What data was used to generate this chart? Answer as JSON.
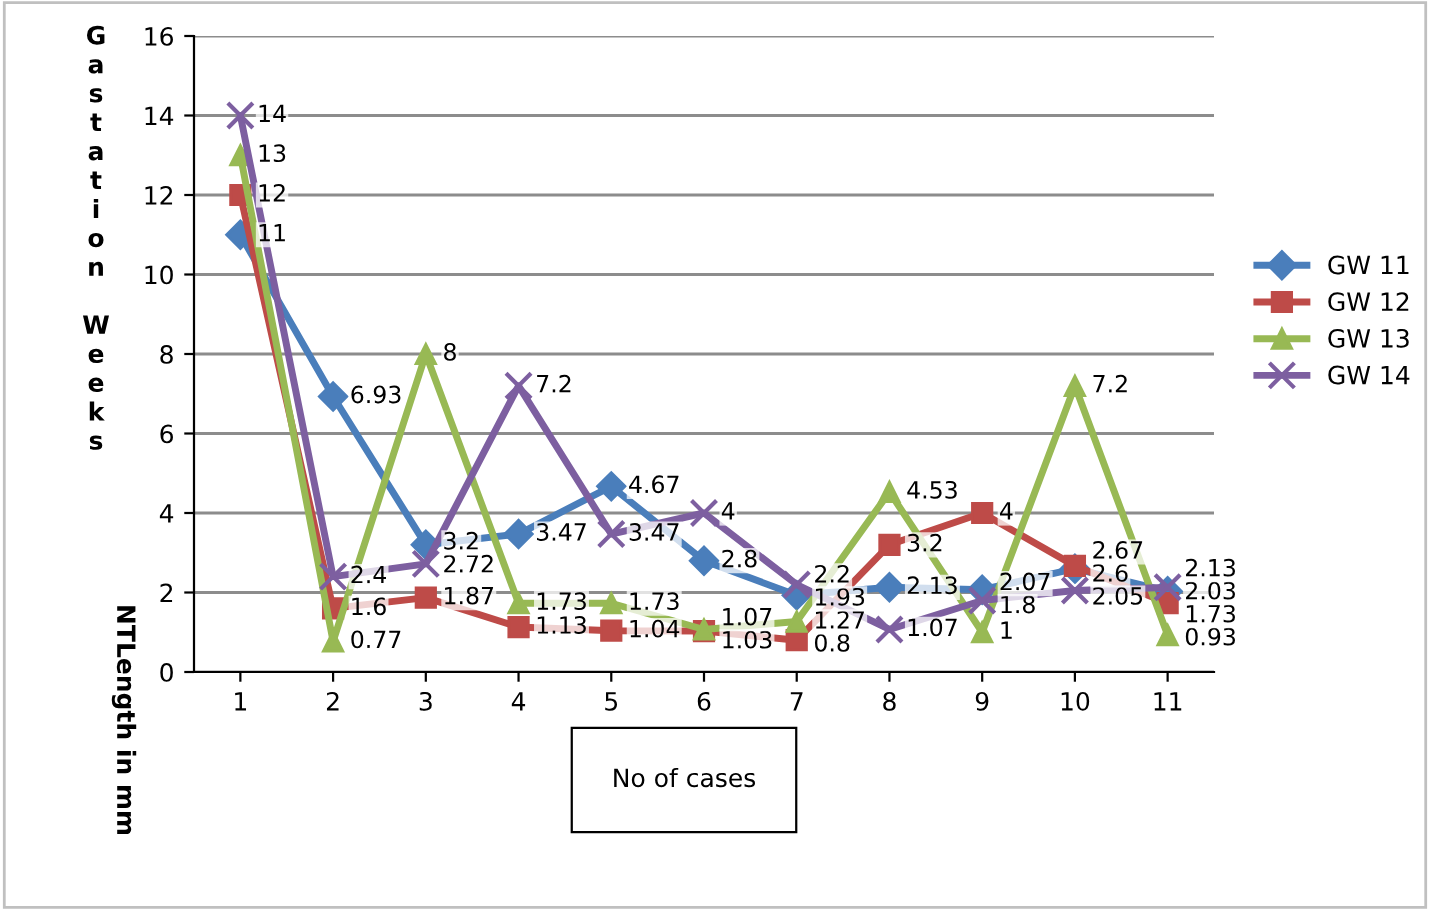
{
  "chart_data": {
    "type": "line",
    "ylabel": "Gastation Weeks",
    "xlabel": "No of cases",
    "annotations": [
      "NTLength in mm"
    ],
    "categories": [
      "1",
      "2",
      "3",
      "4",
      "5",
      "6",
      "7",
      "8",
      "9",
      "10",
      "11"
    ],
    "ylim": [
      0,
      16
    ],
    "yticks": [
      0,
      2,
      4,
      6,
      8,
      10,
      12,
      14,
      16
    ],
    "grid": "y",
    "legend": "right",
    "data_labels": true,
    "series": [
      {
        "name": "GW 11",
        "color": "#4a7ebb",
        "marker": "diamond",
        "values": [
          11,
          6.93,
          3.2,
          3.47,
          4.67,
          2.8,
          1.93,
          2.13,
          2.07,
          2.6,
          2.03
        ]
      },
      {
        "name": "GW 12",
        "color": "#be4b48",
        "marker": "square",
        "values": [
          12,
          1.6,
          1.87,
          1.13,
          1.04,
          1.03,
          0.8,
          3.2,
          4,
          2.67,
          1.73
        ]
      },
      {
        "name": "GW 13",
        "color": "#98b954",
        "marker": "triangle",
        "values": [
          13,
          0.77,
          8,
          1.73,
          1.73,
          1.07,
          1.27,
          4.53,
          1,
          7.2,
          0.93
        ]
      },
      {
        "name": "GW 14",
        "color": "#7d5fa0",
        "marker": "cross",
        "values": [
          14,
          2.4,
          2.72,
          7.2,
          3.47,
          4,
          2.2,
          1.07,
          1.8,
          2.05,
          2.13
        ]
      }
    ]
  }
}
